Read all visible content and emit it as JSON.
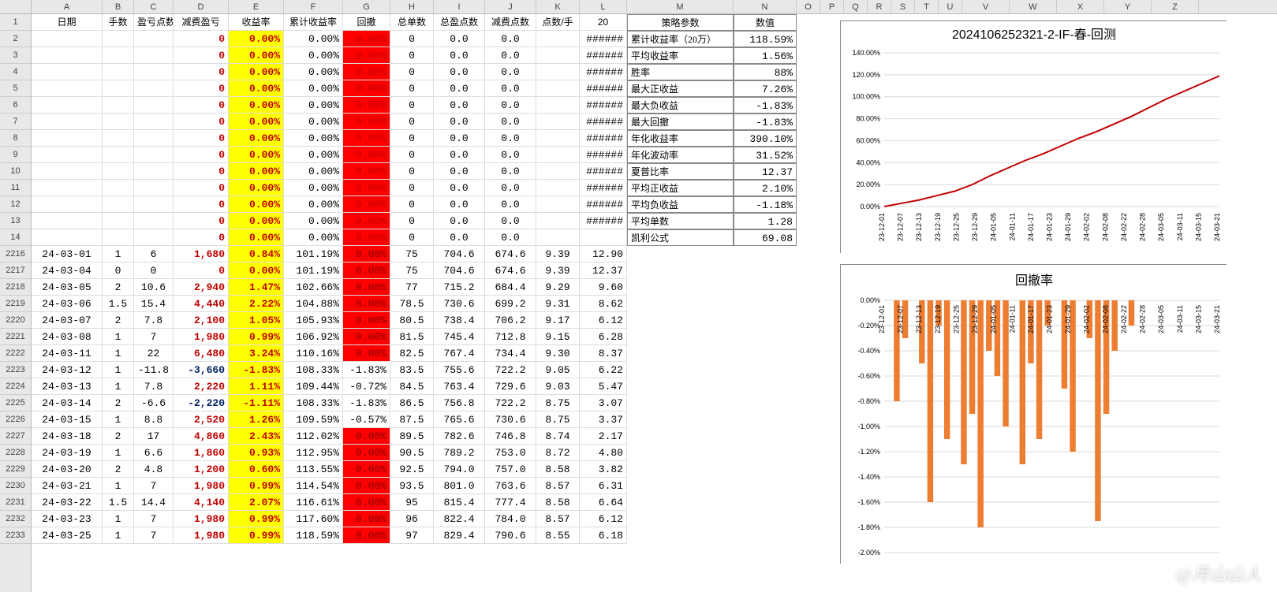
{
  "columns": {
    "letters": [
      "A",
      "B",
      "C",
      "D",
      "E",
      "F",
      "G",
      "H",
      "I",
      "J",
      "K",
      "L",
      "M",
      "N",
      "O",
      "P",
      "Q",
      "R",
      "S",
      "T",
      "U",
      "V",
      "W",
      "X",
      "Y",
      "Z"
    ],
    "widths": [
      90,
      40,
      50,
      70,
      70,
      75,
      60,
      55,
      65,
      65,
      55,
      60,
      135,
      80,
      30,
      30,
      30,
      30,
      30,
      30,
      30,
      60,
      60,
      60,
      60,
      60
    ]
  },
  "header_row": {
    "A": "日期",
    "B": "手数",
    "C": "盈亏点数",
    "D": "减费盈亏",
    "E": "收益率",
    "F": "累计收益率",
    "G": "回撤",
    "H": "总单数",
    "I": "总盈点数",
    "J": "减费点数",
    "K": "点数/手",
    "L": "20",
    "M": "策略参数",
    "N": "数值"
  },
  "top_rows": [
    {
      "n": 2,
      "D": "0",
      "E": "0.00%",
      "F": "0.00%",
      "G": "0.00%",
      "H": "0",
      "I": "0.0",
      "J": "0.0",
      "L": "######",
      "M": "累计收益率（20万）",
      "N": "118.59%"
    },
    {
      "n": 3,
      "D": "0",
      "E": "0.00%",
      "F": "0.00%",
      "G": "0.00%",
      "H": "0",
      "I": "0.0",
      "J": "0.0",
      "L": "######",
      "M": "平均收益率",
      "N": "1.56%"
    },
    {
      "n": 4,
      "D": "0",
      "E": "0.00%",
      "F": "0.00%",
      "G": "0.00%",
      "H": "0",
      "I": "0.0",
      "J": "0.0",
      "L": "######",
      "M": "胜率",
      "N": "88%"
    },
    {
      "n": 5,
      "D": "0",
      "E": "0.00%",
      "F": "0.00%",
      "G": "0.00%",
      "H": "0",
      "I": "0.0",
      "J": "0.0",
      "L": "######",
      "M": "最大正收益",
      "N": "7.26%"
    },
    {
      "n": 6,
      "D": "0",
      "E": "0.00%",
      "F": "0.00%",
      "G": "0.00%",
      "H": "0",
      "I": "0.0",
      "J": "0.0",
      "L": "######",
      "M": "最大负收益",
      "N": "-1.83%"
    },
    {
      "n": 7,
      "D": "0",
      "E": "0.00%",
      "F": "0.00%",
      "G": "0.00%",
      "H": "0",
      "I": "0.0",
      "J": "0.0",
      "L": "######",
      "M": "最大回撤",
      "N": "-1.83%"
    },
    {
      "n": 8,
      "D": "0",
      "E": "0.00%",
      "F": "0.00%",
      "G": "0.00%",
      "H": "0",
      "I": "0.0",
      "J": "0.0",
      "L": "######",
      "M": "年化收益率",
      "N": "390.10%"
    },
    {
      "n": 9,
      "D": "0",
      "E": "0.00%",
      "F": "0.00%",
      "G": "0.00%",
      "H": "0",
      "I": "0.0",
      "J": "0.0",
      "L": "######",
      "M": "年化波动率",
      "N": "31.52%"
    },
    {
      "n": 10,
      "D": "0",
      "E": "0.00%",
      "F": "0.00%",
      "G": "0.00%",
      "H": "0",
      "I": "0.0",
      "J": "0.0",
      "L": "######",
      "M": "夏普比率",
      "N": "12.37"
    },
    {
      "n": 11,
      "D": "0",
      "E": "0.00%",
      "F": "0.00%",
      "G": "0.00%",
      "H": "0",
      "I": "0.0",
      "J": "0.0",
      "L": "######",
      "M": "平均正收益",
      "N": "2.10%"
    },
    {
      "n": 12,
      "D": "0",
      "E": "0.00%",
      "F": "0.00%",
      "G": "0.00%",
      "H": "0",
      "I": "0.0",
      "J": "0.0",
      "L": "######",
      "M": "平均负收益",
      "N": "-1.18%"
    },
    {
      "n": 13,
      "D": "0",
      "E": "0.00%",
      "F": "0.00%",
      "G": "0.00%",
      "H": "0",
      "I": "0.0",
      "J": "0.0",
      "L": "######",
      "M": "平均单数",
      "N": "1.28"
    },
    {
      "n": 14,
      "D": "0",
      "E": "0.00%",
      "F": "0.00%",
      "G": "0.00%",
      "H": "0",
      "I": "0.0",
      "J": "0.0",
      "M": "凯利公式",
      "N": "69.08"
    }
  ],
  "data_rows": [
    {
      "n": 2216,
      "A": "24-03-01",
      "B": "1",
      "C": "6",
      "D": "1,680",
      "E": "0.84%",
      "F": "101.19%",
      "G": "0.00%",
      "Gred": true,
      "H": "75",
      "I": "704.6",
      "J": "674.6",
      "K": "9.39",
      "L": "12.90"
    },
    {
      "n": 2217,
      "A": "24-03-04",
      "B": "0",
      "C": "0",
      "D": "0",
      "E": "0.00%",
      "F": "101.19%",
      "G": "0.00%",
      "Gred": true,
      "H": "75",
      "I": "704.6",
      "J": "674.6",
      "K": "9.39",
      "L": "12.37"
    },
    {
      "n": 2218,
      "A": "24-03-05",
      "B": "2",
      "C": "10.6",
      "D": "2,940",
      "E": "1.47%",
      "F": "102.66%",
      "G": "0.00%",
      "Gred": true,
      "H": "77",
      "I": "715.2",
      "J": "684.4",
      "K": "9.29",
      "L": "9.60"
    },
    {
      "n": 2219,
      "A": "24-03-06",
      "B": "1.5",
      "C": "15.4",
      "D": "4,440",
      "E": "2.22%",
      "F": "104.88%",
      "G": "0.00%",
      "Gred": true,
      "H": "78.5",
      "I": "730.6",
      "J": "699.2",
      "K": "9.31",
      "L": "8.62"
    },
    {
      "n": 2220,
      "A": "24-03-07",
      "B": "2",
      "C": "7.8",
      "D": "2,100",
      "E": "1.05%",
      "F": "105.93%",
      "G": "0.00%",
      "Gred": true,
      "H": "80.5",
      "I": "738.4",
      "J": "706.2",
      "K": "9.17",
      "L": "6.12"
    },
    {
      "n": 2221,
      "A": "24-03-08",
      "B": "1",
      "C": "7",
      "D": "1,980",
      "E": "0.99%",
      "F": "106.92%",
      "G": "0.00%",
      "Gred": true,
      "H": "81.5",
      "I": "745.4",
      "J": "712.8",
      "K": "9.15",
      "L": "6.28"
    },
    {
      "n": 2222,
      "A": "24-03-11",
      "B": "1",
      "C": "22",
      "D": "6,480",
      "E": "3.24%",
      "F": "110.16%",
      "G": "0.00%",
      "Gred": true,
      "H": "82.5",
      "I": "767.4",
      "J": "734.4",
      "K": "9.30",
      "L": "8.37"
    },
    {
      "n": 2223,
      "A": "24-03-12",
      "B": "1",
      "C": "-11.8",
      "D": "-3,660",
      "Dneg": true,
      "E": "-1.83%",
      "F": "108.33%",
      "G": "-1.83%",
      "H": "83.5",
      "I": "755.6",
      "J": "722.2",
      "K": "9.05",
      "L": "6.22"
    },
    {
      "n": 2224,
      "A": "24-03-13",
      "B": "1",
      "C": "7.8",
      "D": "2,220",
      "E": "1.11%",
      "F": "109.44%",
      "G": "-0.72%",
      "H": "84.5",
      "I": "763.4",
      "J": "729.6",
      "K": "9.03",
      "L": "5.47"
    },
    {
      "n": 2225,
      "A": "24-03-14",
      "B": "2",
      "C": "-6.6",
      "D": "-2,220",
      "Dneg": true,
      "E": "-1.11%",
      "F": "108.33%",
      "G": "-1.83%",
      "H": "86.5",
      "I": "756.8",
      "J": "722.2",
      "K": "8.75",
      "L": "3.07"
    },
    {
      "n": 2226,
      "A": "24-03-15",
      "B": "1",
      "C": "8.8",
      "D": "2,520",
      "E": "1.26%",
      "F": "109.59%",
      "G": "-0.57%",
      "H": "87.5",
      "I": "765.6",
      "J": "730.6",
      "K": "8.75",
      "L": "3.37"
    },
    {
      "n": 2227,
      "A": "24-03-18",
      "B": "2",
      "C": "17",
      "D": "4,860",
      "E": "2.43%",
      "F": "112.02%",
      "G": "0.00%",
      "Gred": true,
      "H": "89.5",
      "I": "782.6",
      "J": "746.8",
      "K": "8.74",
      "L": "2.17"
    },
    {
      "n": 2228,
      "A": "24-03-19",
      "B": "1",
      "C": "6.6",
      "D": "1,860",
      "E": "0.93%",
      "F": "112.95%",
      "G": "0.00%",
      "Gred": true,
      "H": "90.5",
      "I": "789.2",
      "J": "753.0",
      "K": "8.72",
      "L": "4.80"
    },
    {
      "n": 2229,
      "A": "24-03-20",
      "B": "2",
      "C": "4.8",
      "D": "1,200",
      "E": "0.60%",
      "F": "113.55%",
      "G": "0.00%",
      "Gred": true,
      "H": "92.5",
      "I": "794.0",
      "J": "757.0",
      "K": "8.58",
      "L": "3.82"
    },
    {
      "n": 2230,
      "A": "24-03-21",
      "B": "1",
      "C": "7",
      "D": "1,980",
      "E": "0.99%",
      "F": "114.54%",
      "G": "0.00%",
      "Gred": true,
      "H": "93.5",
      "I": "801.0",
      "J": "763.6",
      "K": "8.57",
      "L": "6.31"
    },
    {
      "n": 2231,
      "A": "24-03-22",
      "B": "1.5",
      "C": "14.4",
      "D": "4,140",
      "E": "2.07%",
      "F": "116.61%",
      "G": "0.00%",
      "Gred": true,
      "H": "95",
      "I": "815.4",
      "J": "777.4",
      "K": "8.58",
      "L": "6.64"
    },
    {
      "n": 2232,
      "A": "24-03-23",
      "B": "1",
      "C": "7",
      "D": "1,980",
      "E": "0.99%",
      "F": "117.60%",
      "G": "0.00%",
      "Gred": true,
      "H": "96",
      "I": "822.4",
      "J": "784.0",
      "K": "8.57",
      "L": "6.12"
    },
    {
      "n": 2233,
      "A": "24-03-25",
      "B": "1",
      "C": "7",
      "D": "1,980",
      "E": "0.99%",
      "F": "118.59%",
      "G": "0.00%",
      "Gred": true,
      "H": "97",
      "I": "829.4",
      "J": "790.6",
      "K": "8.55",
      "L": "6.18"
    }
  ],
  "chart1": {
    "title": "2024106252321-2-IF-春-回测",
    "title_fontsize": 16,
    "line_color": "#c00000",
    "grid_color": "#d9d9d9",
    "background": "#ffffff",
    "ylim": [
      0,
      140
    ],
    "ytick_step": 20,
    "ytick_fmt": "pct",
    "x": [
      0,
      1,
      2,
      3,
      4,
      5,
      6,
      7,
      8,
      9,
      10,
      11,
      12,
      13,
      14,
      15,
      16,
      17,
      18,
      19
    ],
    "y": [
      0,
      3,
      6,
      10,
      14,
      20,
      28,
      35,
      42,
      48,
      55,
      62,
      68,
      75,
      82,
      90,
      98,
      105,
      112,
      119
    ],
    "xticks": [
      "23-12-01",
      "23-12-07",
      "23-12-13",
      "23-12-19",
      "23-12-25",
      "23-12-29",
      "24-01-05",
      "24-01-11",
      "24-01-17",
      "24-01-23",
      "24-01-29",
      "24-02-02",
      "24-02-08",
      "24-02-22",
      "24-02-28",
      "24-03-05",
      "24-03-11",
      "24-03-15",
      "24-03-21"
    ]
  },
  "chart2": {
    "title": "回撤率",
    "title_fontsize": 16,
    "bar_color": "#ed7d31",
    "grid_color": "#d9d9d9",
    "background": "#ffffff",
    "ylim": [
      -2.0,
      0
    ],
    "ytick_step": 0.2,
    "ytick_fmt": "pct",
    "bars": [
      0,
      -0.8,
      -0.3,
      0,
      -0.5,
      -1.6,
      -0.2,
      -1.1,
      0,
      -1.3,
      -0.9,
      -1.8,
      -0.4,
      -0.6,
      -1.0,
      0,
      -1.3,
      -0.5,
      -1.1,
      -0.2,
      0,
      -0.7,
      -1.2,
      0,
      -0.3,
      -1.75,
      -0.9,
      -0.4,
      0,
      -0.2,
      0,
      0,
      0,
      0,
      0,
      0,
      0,
      0,
      0,
      0
    ],
    "xticks": [
      "23-12-01",
      "23-12-07",
      "23-12-13",
      "23-12-19",
      "23-12-25",
      "23-12-29",
      "24-01-05",
      "24-01-11",
      "24-01-17",
      "24-01-23",
      "24-01-29",
      "24-02-02",
      "24-02-08",
      "24-02-22",
      "24-02-28",
      "24-03-05",
      "24-03-11",
      "24-03-15",
      "24-03-21"
    ]
  },
  "watermark": "@月山山人"
}
